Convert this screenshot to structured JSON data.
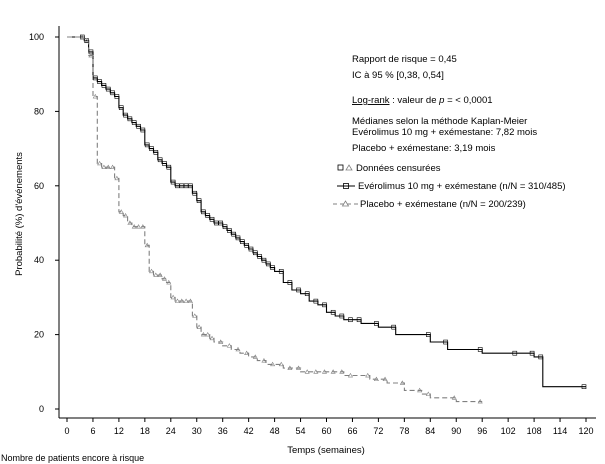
{
  "chart_data": {
    "type": "line",
    "xlabel": "Temps (semaines)",
    "ylabel": "Probabilité (%) d'événements",
    "xlim": [
      0,
      120
    ],
    "ylim": [
      0,
      100
    ],
    "xticks": [
      "0",
      "6",
      "12",
      "18",
      "24",
      "30",
      "36",
      "42",
      "48",
      "54",
      "60",
      "66",
      "72",
      "78",
      "84",
      "90",
      "96",
      "102",
      "108",
      "114",
      "120"
    ],
    "yticks": [
      "0",
      "20",
      "40",
      "60",
      "80",
      "100"
    ],
    "grid": false,
    "series": [
      {
        "name": "Evérolimus 10 mg + exémestane (n/N = 310/485)",
        "style": "solid",
        "color": "#000000",
        "x": [
          0,
          4,
          5,
          6,
          7,
          8,
          9,
          10,
          11,
          12,
          13,
          14,
          15,
          16,
          17,
          18,
          19,
          20,
          21,
          22,
          23,
          24,
          25,
          26,
          27,
          28,
          29,
          30,
          31,
          32,
          33,
          34,
          35,
          36,
          37,
          38,
          39,
          40,
          41,
          42,
          43,
          44,
          45,
          46,
          47,
          48,
          50,
          52,
          54,
          56,
          58,
          60,
          62,
          64,
          66,
          68,
          72,
          76,
          84,
          88,
          96,
          104,
          108,
          110,
          120
        ],
        "y": [
          100,
          99,
          96,
          89,
          88,
          87,
          86,
          85,
          84,
          81,
          79,
          78,
          77,
          76,
          75,
          71,
          70,
          69,
          67,
          66,
          65,
          61,
          60,
          60,
          60,
          60,
          58,
          56,
          53,
          52,
          51,
          50,
          50,
          49,
          48,
          47,
          46,
          45,
          44,
          43,
          42,
          41,
          40,
          39,
          38,
          37,
          34,
          32,
          31,
          29,
          28,
          26,
          25,
          24,
          24,
          23,
          22,
          20,
          18,
          16,
          15,
          15,
          14,
          6,
          6
        ]
      },
      {
        "name": "Placebo + exémestane (n/N = 200/239)",
        "style": "dashed",
        "color": "#808080",
        "x": [
          0,
          4,
          5,
          6,
          7,
          8,
          9,
          10,
          11,
          12,
          13,
          14,
          15,
          16,
          17,
          18,
          19,
          20,
          21,
          22,
          23,
          24,
          25,
          26,
          27,
          28,
          29,
          30,
          31,
          32,
          33,
          34,
          36,
          38,
          40,
          42,
          44,
          46,
          48,
          50,
          52,
          54,
          56,
          58,
          60,
          62,
          64,
          66,
          70,
          72,
          74,
          78,
          82,
          84,
          90,
          96
        ],
        "y": [
          100,
          99,
          95,
          84,
          66,
          65,
          65,
          65,
          62,
          53,
          52,
          50,
          49,
          49,
          49,
          44,
          37,
          36,
          36,
          35,
          34,
          30,
          29,
          29,
          29,
          29,
          25,
          22,
          20,
          20,
          19,
          18,
          17,
          16,
          15,
          14,
          13,
          12,
          12,
          11,
          11,
          10,
          10,
          10,
          10,
          10,
          9,
          9,
          8,
          8,
          7,
          5,
          4,
          3,
          2,
          2
        ]
      }
    ],
    "annotations": [
      "Rapport de risque = 0,45",
      "IC à 95 % [0,38, 0,54]",
      "Log-rank : valeur de p = < 0,0001",
      "Médianes selon la méthode Kaplan-Meier",
      "Evérolimus 10 mg + exémestane: 7,82 mois",
      "Placebo + exémestane: 3,19 mois"
    ],
    "legend": {
      "placement": "right",
      "entries": [
        "Données censurées",
        "Evérolimus 10 mg + exémestane (n/N = 310/485)",
        "Placebo + exémestane (n/N = 200/239)"
      ]
    }
  },
  "annotations_text": {
    "hr": "Rapport de risque = 0,45",
    "ci": "IC à 95 % [0,38, 0,54]",
    "logrank_a": "Log-rank",
    "logrank_b": " : valeur de ",
    "logrank_p": "p",
    "logrank_c": " = < 0,0001",
    "medians_title": "Médianes selon la méthode Kaplan-Meier",
    "median_evero": "Evérolimus 10 mg + exémestane: 7,82 mois",
    "median_placebo": "Placebo + exémestane: 3,19 mois"
  },
  "legend_text": {
    "censored": "Données censurées",
    "evero": "Evérolimus 10 mg + exémestane (n/N = 310/485)",
    "placebo": "Placebo + exémestane (n/N = 200/239)"
  },
  "footer_cut_text": "Nombre de patients encore à risque"
}
